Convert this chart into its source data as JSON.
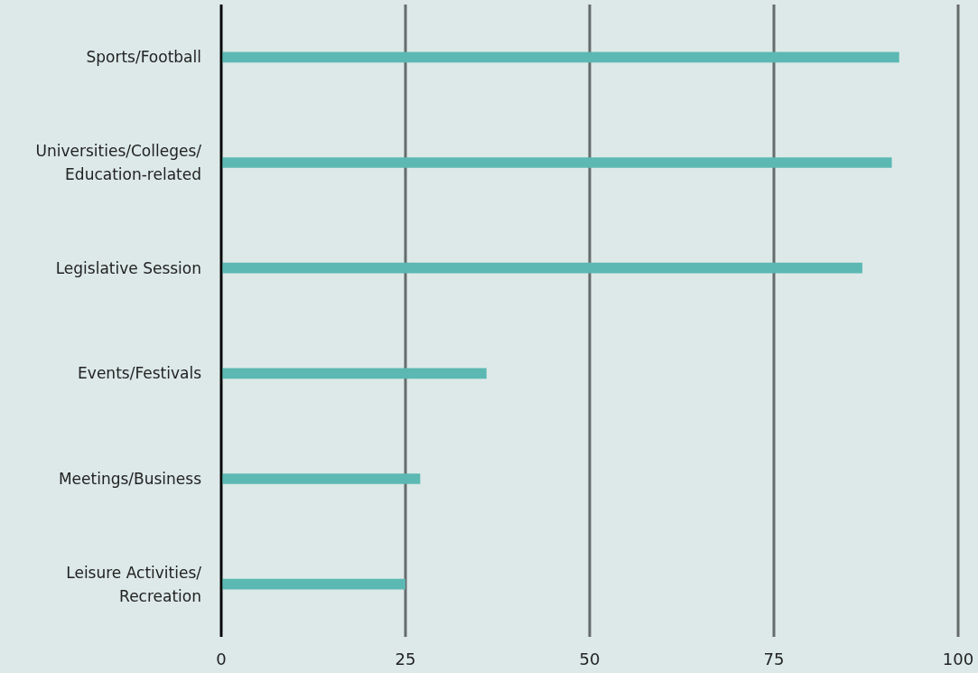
{
  "chart_data": {
    "type": "bar",
    "orientation": "horizontal",
    "categories": [
      "Sports/Football",
      "Universities/Colleges/ Education-related",
      "Legislative Session",
      "Events/Festivals",
      "Meetings/Business",
      "Leisure Activities/ Recreation"
    ],
    "values": [
      92,
      91,
      87,
      36,
      27,
      25
    ],
    "color": "#5cb8b2",
    "xlim": [
      0,
      100
    ],
    "xticks": [
      0,
      25,
      50,
      75,
      100
    ],
    "grid": "x"
  }
}
